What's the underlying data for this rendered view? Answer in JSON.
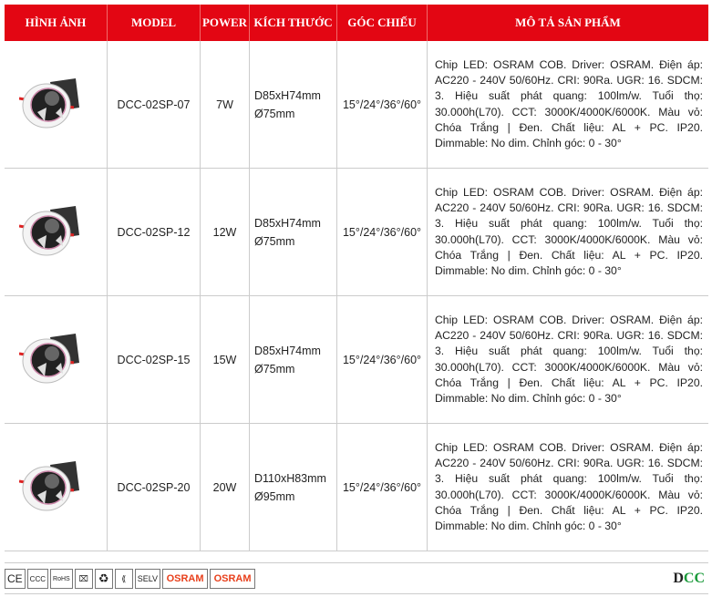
{
  "header": {
    "image": "HÌNH ẢNH",
    "model": "MODEL",
    "power": "POWER",
    "size": "KÍCH THƯỚC",
    "angle": "GÓC CHIẾU",
    "desc": "MÔ TẢ SẢN PHẨM"
  },
  "rows": [
    {
      "model": "DCC-02SP-07",
      "power": "7W",
      "size1": "D85xH74mm",
      "size2": "Ø75mm",
      "angle": "15°/24°/36°/60°",
      "desc": "Chip LED: OSRAM COB. Driver: OSRAM. Điện áp: AC220 - 240V 50/60Hz. CRI: 90Ra. UGR: 16. SDCM: 3. Hiệu suất phát quang: 100lm/w. Tuổi thọ: 30.000h(L70). CCT: 3000K/4000K/6000K. Màu vỏ: Chóa Trắng | Đen. Chất liệu: AL + PC. IP20. Dimmable: No dim. Chỉnh góc: 0 - 30°"
    },
    {
      "model": "DCC-02SP-12",
      "power": "12W",
      "size1": "D85xH74mm",
      "size2": "Ø75mm",
      "angle": "15°/24°/36°/60°",
      "desc": "Chip LED: OSRAM COB. Driver: OSRAM. Điện áp: AC220 - 240V 50/60Hz. CRI: 90Ra. UGR: 16. SDCM: 3. Hiệu suất phát quang: 100lm/w. Tuổi thọ: 30.000h(L70). CCT: 3000K/4000K/6000K. Màu vỏ: Chóa Trắng | Đen. Chất liệu: AL + PC. IP20. Dimmable: No dim. Chỉnh góc: 0 - 30°"
    },
    {
      "model": "DCC-02SP-15",
      "power": "15W",
      "size1": "D85xH74mm",
      "size2": "Ø75mm",
      "angle": "15°/24°/36°/60°",
      "desc": "Chip LED: OSRAM COB. Driver: OSRAM. Điện áp: AC220 - 240V 50/60Hz. CRI: 90Ra. UGR: 16. SDCM: 3. Hiệu suất phát quang: 100lm/w. Tuổi thọ: 30.000h(L70). CCT: 3000K/4000K/6000K. Màu vỏ: Chóa Trắng | Đen. Chất liệu: AL + PC. IP20. Dimmable: No dim. Chỉnh góc: 0 - 30°"
    },
    {
      "model": "DCC-02SP-20",
      "power": "20W",
      "size1": "D110xH83mm",
      "size2": "Ø95mm",
      "angle": "15°/24°/36°/60°",
      "desc": "Chip LED: OSRAM COB. Driver: OSRAM. Điện áp: AC220 - 240V 50/60Hz. CRI: 90Ra. UGR: 16. SDCM: 3. Hiệu suất phát quang: 100lm/w. Tuổi thọ: 30.000h(L70). CCT: 3000K/4000K/6000K. Màu vỏ: Chóa Trắng | Đen. Chất liệu: AL + PC. IP20. Dimmable: No dim. Chỉnh góc: 0 - 30°"
    }
  ],
  "footer": {
    "certs": [
      "CE",
      "CCC",
      "RoHS",
      "WEEE",
      "Recycle",
      "Class II",
      "SELV"
    ],
    "osram1": "OSRAM",
    "osram2": "OSRAM",
    "logo_a": "D",
    "logo_b": "CC"
  },
  "colors": {
    "header_bg": "#e30613",
    "osram": "#e8401c",
    "logo_green": "#1a9a3a"
  }
}
